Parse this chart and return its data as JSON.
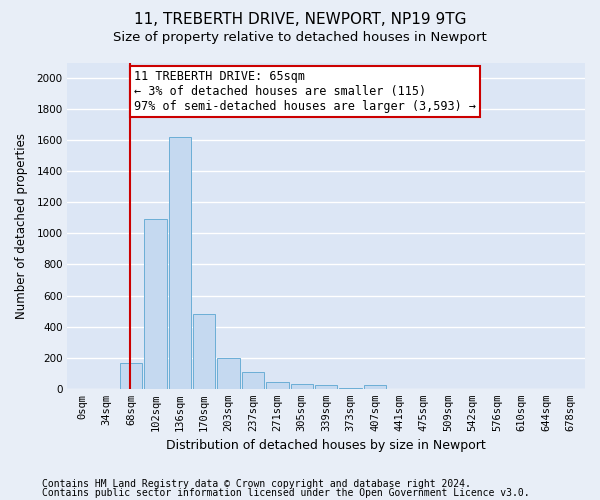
{
  "title1": "11, TREBERTH DRIVE, NEWPORT, NP19 9TG",
  "title2": "Size of property relative to detached houses in Newport",
  "xlabel": "Distribution of detached houses by size in Newport",
  "ylabel": "Number of detached properties",
  "categories": [
    "0sqm",
    "34sqm",
    "68sqm",
    "102sqm",
    "136sqm",
    "170sqm",
    "203sqm",
    "237sqm",
    "271sqm",
    "305sqm",
    "339sqm",
    "373sqm",
    "407sqm",
    "441sqm",
    "475sqm",
    "509sqm",
    "542sqm",
    "576sqm",
    "610sqm",
    "644sqm",
    "678sqm"
  ],
  "values": [
    0,
    0,
    165,
    1090,
    1620,
    480,
    200,
    105,
    47,
    30,
    22,
    5,
    22,
    0,
    0,
    0,
    0,
    0,
    0,
    0,
    0
  ],
  "bar_color": "#c5d9f0",
  "bar_edge_color": "#6baed6",
  "vline_color": "#cc0000",
  "annotation_text": "11 TREBERTH DRIVE: 65sqm\n← 3% of detached houses are smaller (115)\n97% of semi-detached houses are larger (3,593) →",
  "annotation_box_color": "#ffffff",
  "annotation_box_edge_color": "#cc0000",
  "ylim": [
    0,
    2100
  ],
  "yticks": [
    0,
    200,
    400,
    600,
    800,
    1000,
    1200,
    1400,
    1600,
    1800,
    2000
  ],
  "footer1": "Contains HM Land Registry data © Crown copyright and database right 2024.",
  "footer2": "Contains public sector information licensed under the Open Government Licence v3.0.",
  "bg_color": "#e8eef7",
  "plot_bg_color": "#dce6f5",
  "grid_color": "#ffffff",
  "title1_fontsize": 11,
  "title2_fontsize": 9.5,
  "xlabel_fontsize": 9,
  "ylabel_fontsize": 8.5,
  "tick_fontsize": 7.5,
  "annotation_fontsize": 8.5,
  "footer_fontsize": 7
}
